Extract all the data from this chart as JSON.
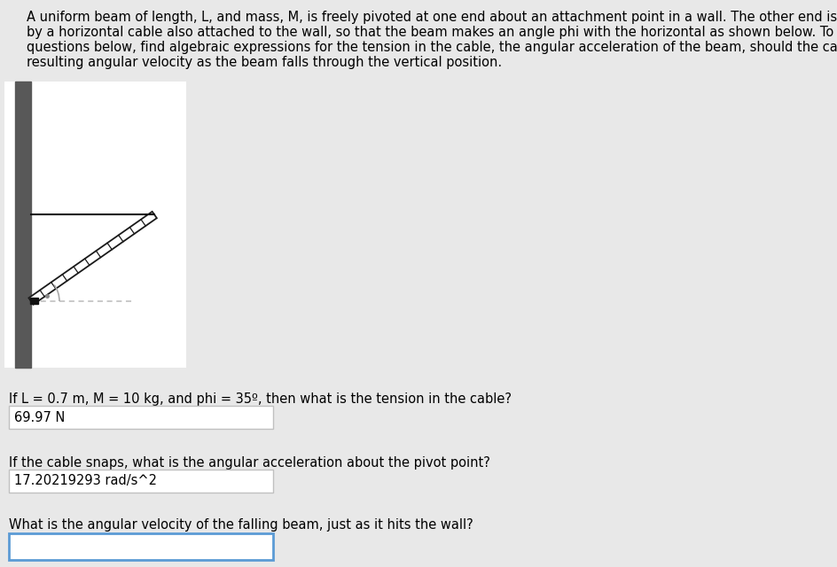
{
  "bg_color": "#e8e8e8",
  "panel_bg": "#ffffff",
  "wall_color": "#585858",
  "beam_color": "#1a1a1a",
  "cable_color": "#111111",
  "dashed_color": "#bbbbbb",
  "angle_arc_color": "#aaaaaa",
  "angle_dot_color": "#888888",
  "phi_deg": 35,
  "line1": "A uniform beam of length, L, and mass, M, is freely pivoted at one end about an attachment point in a wall. The other end is supported",
  "line2": "by a horizontal cable also attached to the wall, so that the beam makes an angle phi with the horizontal as shown below. To answer the",
  "line3": "questions below, find algebraic expressions for the tension in the cable, the angular acceleration of the beam, should the cable break, and the",
  "line4": "resulting angular velocity as the beam falls through the vertical position.",
  "q1_label": "If L = 0.7 m, M = 10 kg, and phi = 35º, then what is the tension in the cable?",
  "q1_answer": "69.97 N",
  "q2_label": "If the cable snaps, what is the angular acceleration about the pivot point?",
  "q2_answer": "17.20219293 rad/s^2",
  "q3_label": "What is the angular velocity of the falling beam, just as it hits the wall?",
  "q3_answer": "",
  "box_border_color_active": "#5b9bd5",
  "box_border_color_normal": "#c0c0c0",
  "box_bg_color": "#ffffff",
  "text_fontsize": 10.5,
  "label_fontsize": 10.5
}
